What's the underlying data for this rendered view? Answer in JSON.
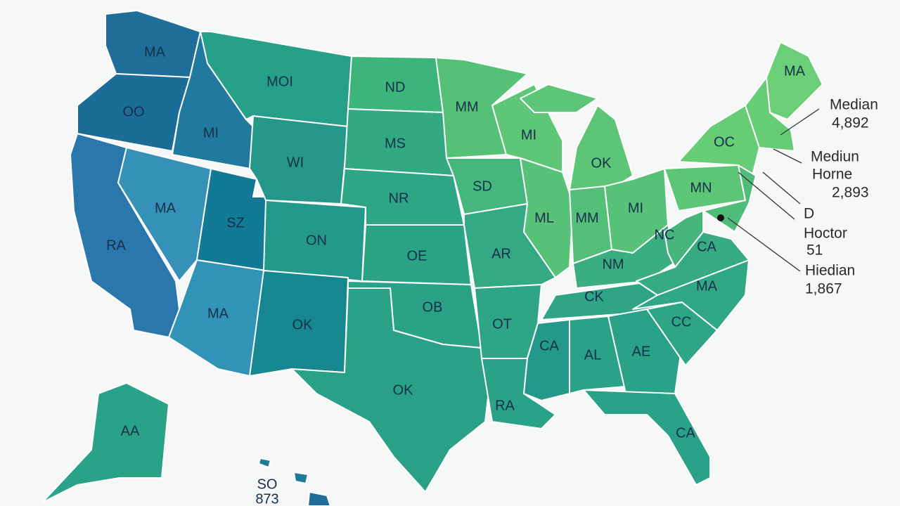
{
  "state_labels": [
    "MA",
    "OO",
    "MI",
    "RA",
    "MA",
    "SZ",
    "MA",
    "MOI",
    "WI",
    "ON",
    "OK",
    "ND",
    "MS",
    "NR",
    "OE",
    "OB",
    "OK",
    "MM",
    "SD",
    "AR",
    "OT",
    "RA",
    "MI",
    "ML",
    "OK",
    "MM",
    "MI",
    "NM",
    "CK",
    "CA",
    "AL",
    "AE",
    "CA",
    "CC",
    "MA",
    "CA",
    "NC",
    "MN",
    "OC",
    "MA",
    "AA"
  ],
  "hawaii_label": [
    "SO",
    "873"
  ],
  "annotations": [
    [
      "Median",
      "4,892"
    ],
    [
      "Mediun",
      "Horne",
      "2,893"
    ],
    [
      "D",
      "Hoctor",
      "51"
    ],
    [
      "Hiedian",
      "1,867"
    ]
  ]
}
